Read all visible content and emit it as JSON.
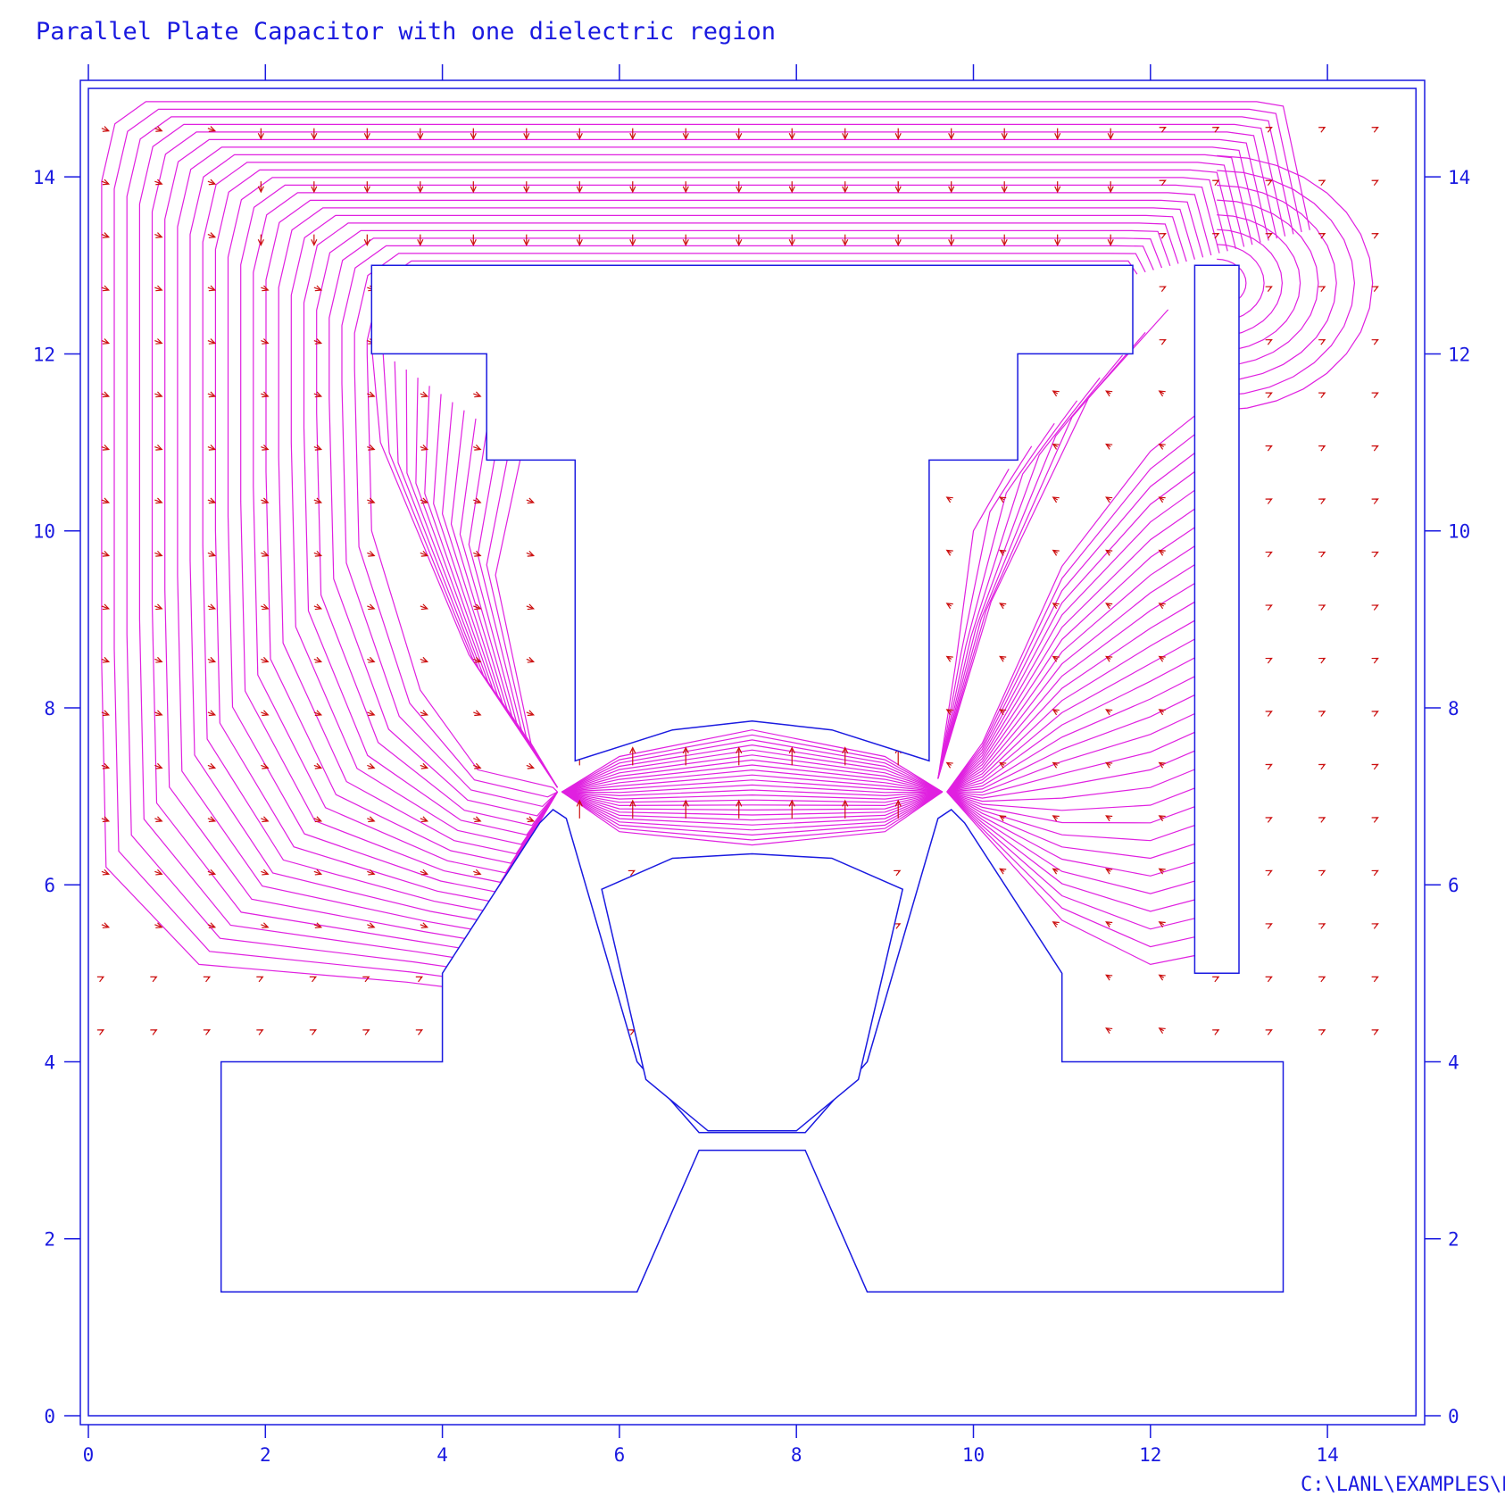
{
  "title": "Parallel Plate Capacitor with one dielectric region",
  "footer_path": "C:\\LANL\\EXAMPLES\\ELEC",
  "colors": {
    "frame": "#1a1ae0",
    "field_lines": "#e020e0",
    "arrows": "#cc1010",
    "text": "#1a1ae0"
  },
  "axes": {
    "x_ticks": [
      "0",
      "2",
      "4",
      "6",
      "8",
      "10",
      "12",
      "14"
    ],
    "y_ticks": [
      "0",
      "2",
      "4",
      "6",
      "8",
      "10",
      "12",
      "14"
    ],
    "xlim": [
      0,
      15
    ],
    "ylim": [
      0,
      15
    ]
  },
  "regions": {
    "upper_electrode": [
      [
        3.2,
        13
      ],
      [
        11.8,
        13
      ],
      [
        11.8,
        12
      ],
      [
        10.5,
        12
      ],
      [
        10.5,
        10.8
      ],
      [
        9.5,
        10.8
      ],
      [
        9.5,
        7.4
      ],
      [
        8.4,
        7.75
      ],
      [
        7.5,
        7.85
      ],
      [
        6.6,
        7.75
      ],
      [
        5.5,
        7.4
      ],
      [
        5.5,
        10.8
      ],
      [
        4.5,
        10.8
      ],
      [
        4.5,
        12
      ],
      [
        3.2,
        12
      ]
    ],
    "lower_electrode": [
      [
        1.5,
        1.4
      ],
      [
        1.5,
        4
      ],
      [
        4,
        4
      ],
      [
        4,
        5
      ],
      [
        5.1,
        6.7
      ],
      [
        5.25,
        6.85
      ],
      [
        5.4,
        6.75
      ],
      [
        6.2,
        4
      ],
      [
        6.9,
        3.2
      ],
      [
        8.1,
        3.2
      ],
      [
        8.8,
        4
      ],
      [
        9.6,
        6.75
      ],
      [
        9.75,
        6.85
      ],
      [
        9.9,
        6.7
      ],
      [
        11,
        5
      ],
      [
        11,
        4
      ],
      [
        13.5,
        4
      ],
      [
        13.5,
        1.4
      ],
      [
        8.8,
        1.4
      ],
      [
        8.1,
        3.0
      ],
      [
        6.9,
        3.0
      ],
      [
        6.2,
        1.4
      ]
    ],
    "dielectric": [
      [
        5.8,
        5.95
      ],
      [
        6.6,
        6.3
      ],
      [
        7.5,
        6.35
      ],
      [
        8.4,
        6.3
      ],
      [
        9.2,
        5.95
      ],
      [
        8.7,
        3.8
      ],
      [
        8.0,
        3.22
      ],
      [
        7.0,
        3.22
      ],
      [
        6.3,
        3.8
      ]
    ],
    "side_plate": [
      [
        12.5,
        13
      ],
      [
        13,
        13
      ],
      [
        13,
        5
      ],
      [
        12.5,
        5
      ]
    ]
  }
}
